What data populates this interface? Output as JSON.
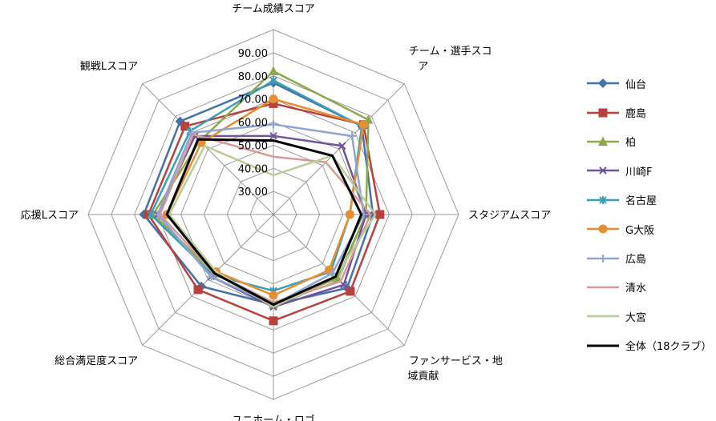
{
  "chart_data": {
    "type": "radar",
    "axes": [
      "チーム成績スコア",
      "チーム・選手スコア",
      "スタジアムスコア",
      "ファンサービス・地域貢献",
      "ユニホーム・ロゴ",
      "総合満足度スコア",
      "応援Lスコア",
      "観戦Lスコア"
    ],
    "axis_label_lines": [
      [
        "チーム成績スコア"
      ],
      [
        "チーム・選手スコ",
        "ア"
      ],
      [
        "スタジアムスコア"
      ],
      [
        "ファンサービス・地",
        "域貢献"
      ],
      [
        "ユニホーム・ロゴ"
      ],
      [
        "総合満足度スコア"
      ],
      [
        "応援Lスコア"
      ],
      [
        "観戦Lスコア"
      ]
    ],
    "r_ticks": [
      "30.00",
      "40.00",
      "50.00",
      "60.00",
      "70.00",
      "80.00",
      "90.00"
    ],
    "rlim": [
      20,
      100
    ],
    "series": [
      {
        "name": "仙台",
        "color": "#4472A8",
        "marker": "diamond",
        "values": [
          77,
          74,
          63,
          65,
          59,
          64,
          76,
          77
        ]
      },
      {
        "name": "鹿島",
        "color": "#B8413E",
        "marker": "square",
        "values": [
          68,
          75,
          66,
          67,
          66,
          66,
          74,
          74
        ]
      },
      {
        "name": "柏",
        "color": "#8EA94B",
        "marker": "triangle",
        "values": [
          82,
          78,
          60,
          59,
          59,
          56,
          72,
          65
        ]
      },
      {
        "name": "川崎F",
        "color": "#6F5497",
        "marker": "x",
        "values": [
          54,
          62,
          60,
          63,
          60,
          58,
          70,
          68
        ]
      },
      {
        "name": "名古屋",
        "color": "#3A9FB7",
        "marker": "asterisk",
        "values": [
          78,
          74,
          53,
          55,
          53,
          57,
          73,
          71
        ]
      },
      {
        "name": "G大阪",
        "color": "#E58E34",
        "marker": "circle",
        "values": [
          70,
          75,
          53,
          54,
          55,
          55,
          66,
          64
        ]
      },
      {
        "name": "広島",
        "color": "#8FA5CF",
        "marker": "plus",
        "values": [
          59,
          68,
          59,
          56,
          59,
          58,
          70,
          70
        ]
      },
      {
        "name": "清水",
        "color": "#D79896",
        "marker": "none",
        "values": [
          45,
          52,
          62,
          61,
          58,
          56,
          69,
          69
        ]
      },
      {
        "name": "大宮",
        "color": "#B9CD96",
        "marker": "none",
        "values": [
          37,
          56,
          64,
          58,
          60,
          55,
          65,
          62
        ]
      },
      {
        "name": "全体（18クラブ）",
        "color": "#000000",
        "marker": "none",
        "values": [
          52,
          56,
          58,
          58,
          59,
          56,
          66,
          66
        ]
      }
    ],
    "legend_position": "right",
    "grid": true
  }
}
